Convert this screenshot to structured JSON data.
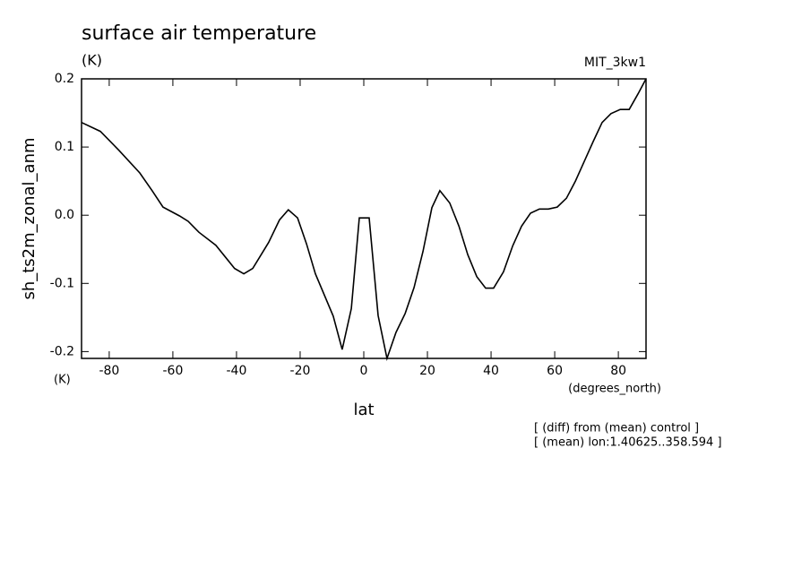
{
  "chart_data": {
    "type": "line",
    "title": "surface air temperature",
    "units": "(K)",
    "label_right": "MIT_3kw1",
    "ylabel": "sh_ts2m_zonal_anm",
    "yunits": "(K)",
    "xunits": "(degrees_north)",
    "xlabel": "lat",
    "notes": [
      "[ (diff) from (mean) control ]",
      "[ (mean) lon:1.40625..358.594 ]"
    ],
    "x": [
      -88.7,
      -82.8,
      -76.9,
      -70.4,
      -66.5,
      -63.1,
      -57.9,
      -55.2,
      -51.8,
      -46.5,
      -40.6,
      -37.7,
      -34.9,
      -29.9,
      -26.5,
      -23.7,
      -20.8,
      -18.0,
      -15.2,
      -9.6,
      -6.8,
      -3.9,
      -1.4,
      1.7,
      4.5,
      7.3,
      10.1,
      13.0,
      15.8,
      18.6,
      21.4,
      23.9,
      27.0,
      29.9,
      32.7,
      35.5,
      38.3,
      40.8,
      43.9,
      46.8,
      49.6,
      52.4,
      55.2,
      58.0,
      60.8,
      63.7,
      66.5,
      69.3,
      72.1,
      74.9,
      77.7,
      80.6,
      83.4,
      86.2,
      88.7
    ],
    "series": [
      {
        "color": "#000000",
        "values": [
          0.136,
          0.123,
          0.095,
          0.062,
          0.036,
          0.012,
          -0.001,
          -0.009,
          -0.025,
          -0.044,
          -0.078,
          -0.086,
          -0.078,
          -0.04,
          -0.007,
          0.008,
          -0.004,
          -0.042,
          -0.086,
          -0.148,
          -0.197,
          -0.137,
          -0.004,
          -0.004,
          -0.147,
          -0.21,
          -0.172,
          -0.144,
          -0.106,
          -0.053,
          0.011,
          0.036,
          0.018,
          -0.016,
          -0.058,
          -0.09,
          -0.107,
          -0.107,
          -0.083,
          -0.045,
          -0.016,
          0.003,
          0.009,
          0.009,
          0.012,
          0.025,
          0.05,
          0.079,
          0.108,
          0.136,
          0.149,
          0.155,
          0.155,
          0.178,
          0.2
        ]
      }
    ],
    "xlim": [
      -88.7,
      88.7
    ],
    "xticks": [
      -80,
      -60,
      -40,
      -20,
      0,
      20,
      40,
      60,
      80
    ],
    "ylim": [
      -0.21,
      0.2
    ],
    "yticks": [
      -0.2,
      -0.1,
      {
        "value": 0,
        "label": "0.0"
      },
      0.1,
      0.2
    ]
  }
}
